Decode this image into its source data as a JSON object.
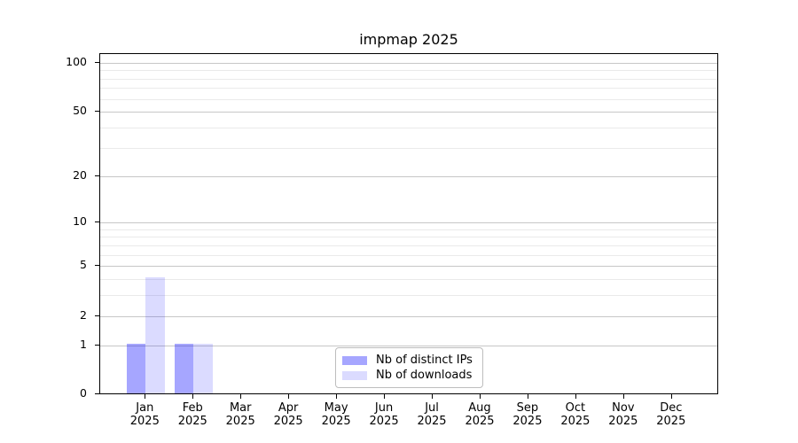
{
  "title": "impmap 2025",
  "chart_data": {
    "type": "bar",
    "title": "impmap 2025",
    "xlabel": "",
    "ylabel": "",
    "categories": [
      "Jan",
      "Feb",
      "Mar",
      "Apr",
      "May",
      "Jun",
      "Jul",
      "Aug",
      "Sep",
      "Oct",
      "Nov",
      "Dec"
    ],
    "category_year": "2025",
    "series": [
      {
        "name": "Nb of distinct IPs",
        "color": "#0000ff",
        "alpha": 0.35,
        "values": [
          1,
          1,
          0,
          0,
          0,
          0,
          0,
          0,
          0,
          0,
          0,
          0
        ]
      },
      {
        "name": "Nb of downloads",
        "color": "#0000ff",
        "alpha": 0.14,
        "values": [
          4,
          1,
          0,
          0,
          0,
          0,
          0,
          0,
          0,
          0,
          0,
          0
        ]
      }
    ],
    "y_axis": {
      "scale": "log10(1+y)",
      "ticks": [
        0,
        1,
        2,
        5,
        10,
        20,
        50,
        100
      ],
      "minor_gridlines": [
        3,
        4,
        6,
        7,
        8,
        9,
        30,
        40,
        60,
        70,
        80,
        90
      ],
      "ylim": [
        0,
        113
      ]
    },
    "grid": "both",
    "legend_position": "lower center",
    "colors": {
      "major_grid": "#c7c7c7",
      "minor_grid": "#eaeaea",
      "spine": "#000000",
      "text": "#000000",
      "background": "#ffffff"
    }
  }
}
